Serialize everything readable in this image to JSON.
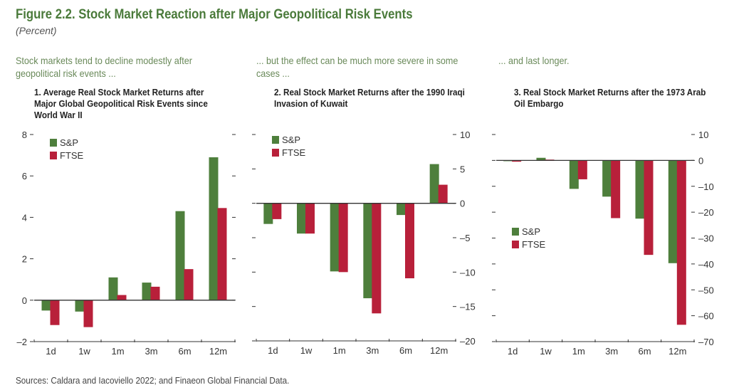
{
  "title": "Figure 2.2. Stock Market Reaction after Major Geopolitical Risk Events",
  "unit": "(Percent)",
  "source": "Sources: Caldara and Iacoviello 2022; and Finaeon Global Financial Data.",
  "colors": {
    "sp": "#4e7f3c",
    "ftse": "#b8203a"
  },
  "chart_data": [
    {
      "type": "bar",
      "lead": "Stock markets tend to decline modestly after geopolitical risk events ...",
      "title": "1. Average Real Stock Market Returns after Major Global Geopolitical Risk Events since World War II",
      "categories": [
        "1d",
        "1w",
        "1m",
        "3m",
        "6m",
        "12m"
      ],
      "ylim": [
        -2,
        8
      ],
      "yticks": [
        -2,
        0,
        2,
        4,
        6,
        8
      ],
      "ytick_labels": [
        "–2",
        "0",
        "2",
        "4",
        "6",
        "8"
      ],
      "yaxis": "left",
      "legend": "top-left",
      "series": [
        {
          "name": "S&P",
          "values": [
            -0.5,
            -0.55,
            1.1,
            0.85,
            4.3,
            6.9
          ]
        },
        {
          "name": "FTSE",
          "values": [
            -1.2,
            -1.3,
            0.25,
            0.65,
            1.5,
            4.45
          ]
        }
      ]
    },
    {
      "type": "bar",
      "lead": "... but the effect can be much more severe in some cases ...",
      "title": "2. Real Stock Market Returns after the 1990 Iraqi Invasion of Kuwait",
      "categories": [
        "1d",
        "1w",
        "1m",
        "3m",
        "6m",
        "12m"
      ],
      "ylim": [
        -20,
        10
      ],
      "yticks": [
        -20,
        -15,
        -10,
        -5,
        0,
        5,
        10
      ],
      "ytick_labels": [
        "–20",
        "–15",
        "–10",
        "–5",
        "0",
        "5",
        "10"
      ],
      "yaxis": "right",
      "legend": "top-left",
      "series": [
        {
          "name": "S&P",
          "values": [
            -3.0,
            -4.4,
            -9.9,
            -13.8,
            -1.7,
            5.7
          ]
        },
        {
          "name": "FTSE",
          "values": [
            -2.3,
            -4.4,
            -10.0,
            -16.0,
            -10.9,
            2.7
          ]
        }
      ]
    },
    {
      "type": "bar",
      "lead": "... and last longer.",
      "title": "3. Real Stock Market Returns after the 1973 Arab Oil Embargo",
      "categories": [
        "1d",
        "1w",
        "1m",
        "3m",
        "6m",
        "12m"
      ],
      "ylim": [
        -70,
        10
      ],
      "yticks": [
        -70,
        -60,
        -50,
        -40,
        -30,
        -20,
        -10,
        0,
        10
      ],
      "ytick_labels": [
        "–70",
        "–60",
        "–50",
        "–40",
        "–30",
        "–20",
        "–10",
        "0",
        "10"
      ],
      "yaxis": "right",
      "legend": "middle-left",
      "series": [
        {
          "name": "S&P",
          "values": [
            -0.3,
            1.0,
            -11.0,
            -14.0,
            -22.5,
            -39.7
          ]
        },
        {
          "name": "FTSE",
          "values": [
            -0.5,
            0.3,
            -7.3,
            -22.3,
            -36.5,
            -63.5
          ]
        }
      ]
    }
  ]
}
